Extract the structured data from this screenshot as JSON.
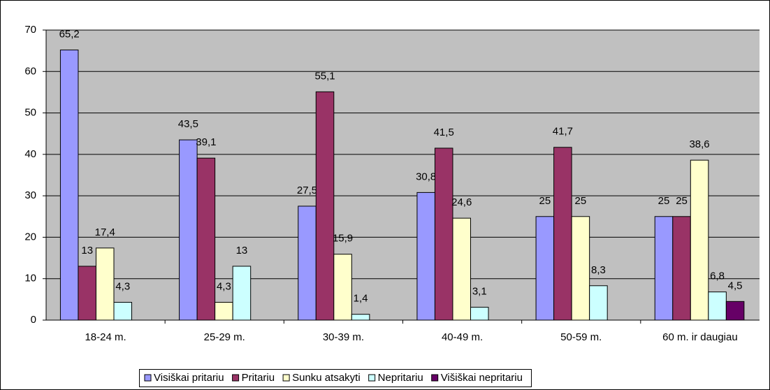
{
  "chart_data": {
    "type": "bar",
    "categories": [
      "18-24 m.",
      "25-29 m.",
      "30-39 m.",
      "40-49 m.",
      "50-59 m.",
      "60 m. ir daugiau"
    ],
    "series": [
      {
        "name": "Visiškai pritariu",
        "color": "#9999ff",
        "values": [
          65.2,
          43.5,
          27.5,
          30.8,
          25,
          25
        ],
        "value_labels": [
          "65,2",
          "43,5",
          "27,5",
          "30,8",
          "25",
          "25"
        ]
      },
      {
        "name": "Pritariu",
        "color": "#993366",
        "values": [
          13,
          39.1,
          55.1,
          41.5,
          41.7,
          25
        ],
        "value_labels": [
          "13",
          "39,1",
          "55,1",
          "41,5",
          "41,7",
          "25"
        ]
      },
      {
        "name": "Sunku atsakyti",
        "color": "#ffffcc",
        "values": [
          17.4,
          4.3,
          15.9,
          24.6,
          25,
          38.6
        ],
        "value_labels": [
          "17,4",
          "4,3",
          "15,9",
          "24,6",
          "25",
          "38,6"
        ]
      },
      {
        "name": "Nepritariu",
        "color": "#ccffff",
        "values": [
          4.3,
          13,
          1.4,
          3.1,
          8.3,
          6.8
        ],
        "value_labels": [
          "4,3",
          "13",
          "1,4",
          "3,1",
          "8,3",
          "6,8"
        ]
      },
      {
        "name": "Višiškai nepritariu",
        "color": "#660066",
        "values": [
          null,
          null,
          null,
          null,
          null,
          4.5
        ],
        "value_labels": [
          null,
          null,
          null,
          null,
          null,
          "4,5"
        ]
      }
    ],
    "ylim": [
      0,
      70
    ],
    "yticks": [
      0,
      10,
      20,
      30,
      40,
      50,
      60,
      70
    ],
    "grid": true,
    "legend": "bottom"
  }
}
